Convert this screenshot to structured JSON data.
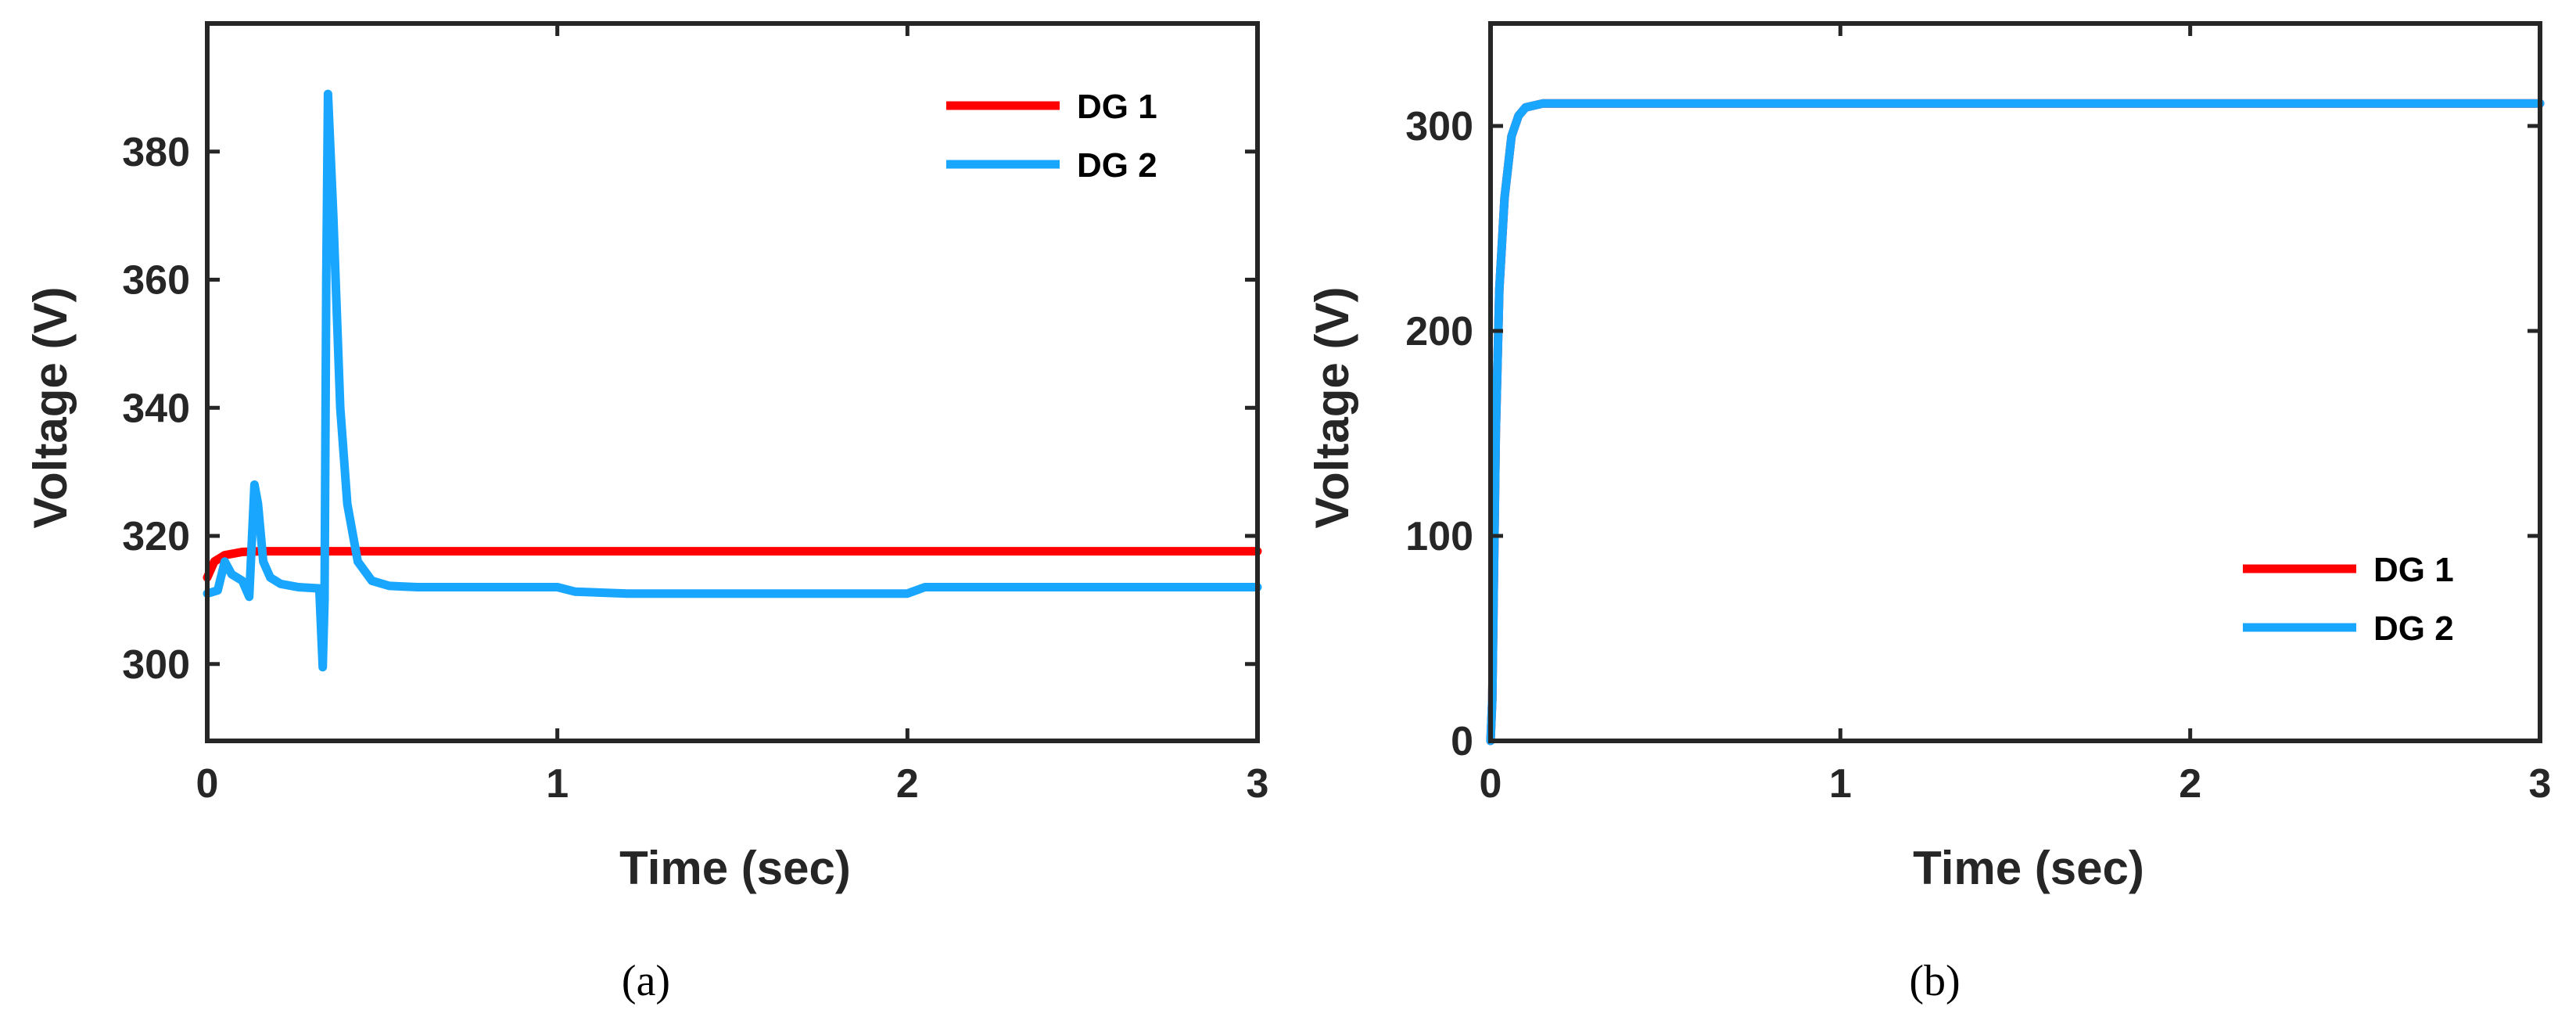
{
  "chart_data": [
    {
      "type": "line",
      "caption": "(a)",
      "xlabel": "Time (sec)",
      "ylabel": "Voltage (V)",
      "xlim": [
        0,
        3
      ],
      "ylim": [
        288,
        400
      ],
      "xticks": [
        0,
        1,
        2,
        3
      ],
      "yticks": [
        300,
        320,
        340,
        360,
        380
      ],
      "legend_position": "top-right",
      "grid": false,
      "series": [
        {
          "name": "DG 1",
          "color": "#ff0000",
          "x": [
            0,
            0.02,
            0.05,
            0.1,
            0.15,
            0.2,
            0.5,
            1.0,
            1.5,
            2.0,
            2.5,
            3.0
          ],
          "y": [
            313.5,
            316,
            317,
            317.5,
            317.6,
            317.6,
            317.6,
            317.6,
            317.6,
            317.6,
            317.6,
            317.6
          ]
        },
        {
          "name": "DG 2",
          "color": "#19a6ff",
          "x": [
            0,
            0.03,
            0.05,
            0.07,
            0.1,
            0.12,
            0.135,
            0.145,
            0.16,
            0.18,
            0.21,
            0.26,
            0.32,
            0.33,
            0.335,
            0.34,
            0.345,
            0.36,
            0.38,
            0.4,
            0.43,
            0.47,
            0.52,
            0.6,
            0.8,
            1.0,
            1.05,
            1.2,
            1.5,
            1.8,
            2.0,
            2.05,
            2.5,
            3.0
          ],
          "y": [
            311,
            311.5,
            316,
            314,
            313,
            310.5,
            328,
            325,
            316,
            313.5,
            312.5,
            312,
            311.8,
            299.5,
            310,
            360,
            389,
            370,
            340,
            325,
            316,
            313,
            312.2,
            312,
            312,
            312,
            311.3,
            311,
            311,
            311,
            311,
            312,
            312,
            312
          ]
        }
      ]
    },
    {
      "type": "line",
      "caption": "(b)",
      "xlabel": "Time (sec)",
      "ylabel": "Voltage (V)",
      "xlim": [
        0,
        3
      ],
      "ylim": [
        0,
        350
      ],
      "xticks": [
        0,
        1,
        2,
        3
      ],
      "yticks": [
        0,
        100,
        200,
        300
      ],
      "legend_position": "lower-right",
      "grid": false,
      "series": [
        {
          "name": "DG 1",
          "color": "#ff0000",
          "x": [
            0,
            0.005,
            0.015,
            0.025,
            0.04,
            0.06,
            0.08,
            0.1,
            0.15,
            0.3,
            1.0,
            2.0,
            3.0
          ],
          "y": [
            0,
            20,
            150,
            220,
            265,
            295,
            305,
            309,
            311,
            311,
            311,
            311,
            311
          ]
        },
        {
          "name": "DG 2",
          "color": "#19a6ff",
          "x": [
            0,
            0.005,
            0.015,
            0.025,
            0.04,
            0.06,
            0.08,
            0.1,
            0.15,
            0.3,
            1.0,
            2.0,
            3.0
          ],
          "y": [
            0,
            20,
            150,
            220,
            265,
            295,
            305,
            309,
            311,
            311,
            311,
            311,
            311
          ]
        }
      ]
    }
  ]
}
